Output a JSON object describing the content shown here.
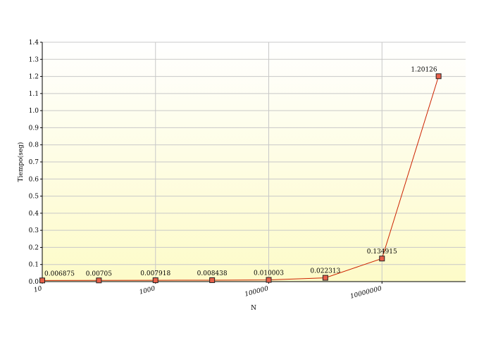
{
  "chart_data": {
    "type": "line",
    "title": "",
    "xlabel": "N",
    "ylabel": "Tiempo(seg)",
    "x_scale": "log",
    "xlim": [
      10,
      300000000
    ],
    "ylim": [
      0,
      1.4
    ],
    "y_ticks": [
      "0.0",
      "0.1",
      "0.2",
      "0.3",
      "0.4",
      "0.5",
      "0.6",
      "0.7",
      "0.8",
      "0.9",
      "1.0",
      "1.1",
      "1.2",
      "1.3",
      "1.4"
    ],
    "x_ticks": [
      {
        "value": 10,
        "label": "10"
      },
      {
        "value": 1000,
        "label": "1000"
      },
      {
        "value": 100000,
        "label": "100000"
      },
      {
        "value": 10000000,
        "label": "10000000"
      }
    ],
    "grid": true,
    "series": [
      {
        "color": "#cc2200",
        "marker_color": "#e8604a",
        "points": [
          {
            "x": 10,
            "y": 0.006875,
            "label": "0.006875"
          },
          {
            "x": 100,
            "y": 0.00705,
            "label": "0.00705"
          },
          {
            "x": 1000,
            "y": 0.007918,
            "label": "0.007918"
          },
          {
            "x": 10000,
            "y": 0.008438,
            "label": "0.008438"
          },
          {
            "x": 100000,
            "y": 0.010003,
            "label": "0.010003"
          },
          {
            "x": 1000000,
            "y": 0.022313,
            "label": "0.022313"
          },
          {
            "x": 10000000,
            "y": 0.134915,
            "label": "0.134915"
          },
          {
            "x": 100000000,
            "y": 1.20126,
            "label": "1.20126"
          }
        ]
      }
    ]
  }
}
